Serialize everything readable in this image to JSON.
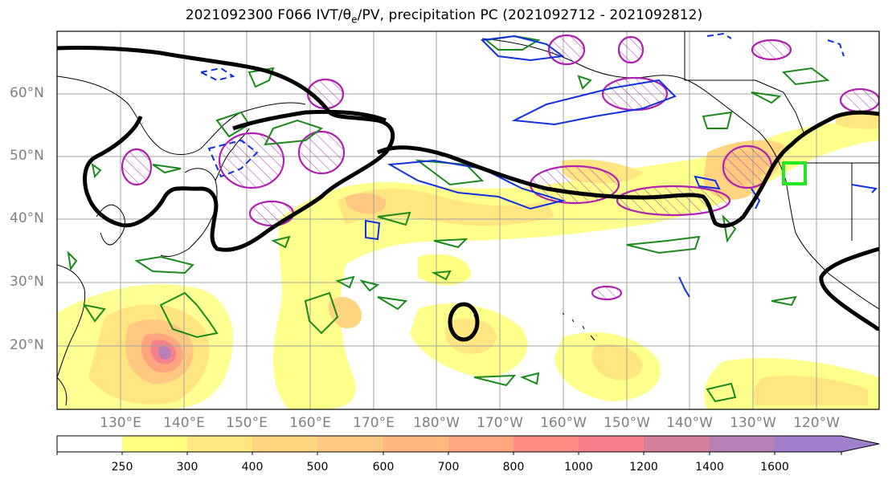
{
  "title": "2021092300 F066 IVT/θe/PV, precipitation PC (2021092712 - 2021092812)",
  "title_parts": {
    "prefix": "2021092300 F066 IVT/",
    "theta": "θ",
    "theta_sub": "e",
    "suffix": "/PV, precipitation PC (2021092712 - 2021092812)"
  },
  "lat_labels": [
    "60°N",
    "50°N",
    "40°N",
    "30°N",
    "20°N"
  ],
  "lon_labels": [
    "130°E",
    "140°E",
    "150°E",
    "160°E",
    "170°E",
    "180°W",
    "170°W",
    "160°W",
    "150°W",
    "140°W",
    "130°W",
    "120°W"
  ],
  "colorbar": {
    "ticks": [
      "250",
      "300",
      "400",
      "500",
      "600",
      "700",
      "800",
      "1000",
      "1200",
      "1400",
      "1600"
    ],
    "colors": [
      "#ffffff",
      "#ffff80",
      "#ffe680",
      "#ffd580",
      "#ffc880",
      "#ffb980",
      "#ffa57f",
      "#ff8a7f",
      "#f57f8a",
      "#d47f99",
      "#b480b5",
      "#9f7fcc"
    ],
    "extend": "max"
  },
  "map_data": {
    "region": "North Pacific",
    "lat_range_deg": [
      10,
      70
    ],
    "lon_range_deg": [
      120,
      250
    ],
    "grid": true,
    "marker": "green box near 123°W 46°N"
  }
}
